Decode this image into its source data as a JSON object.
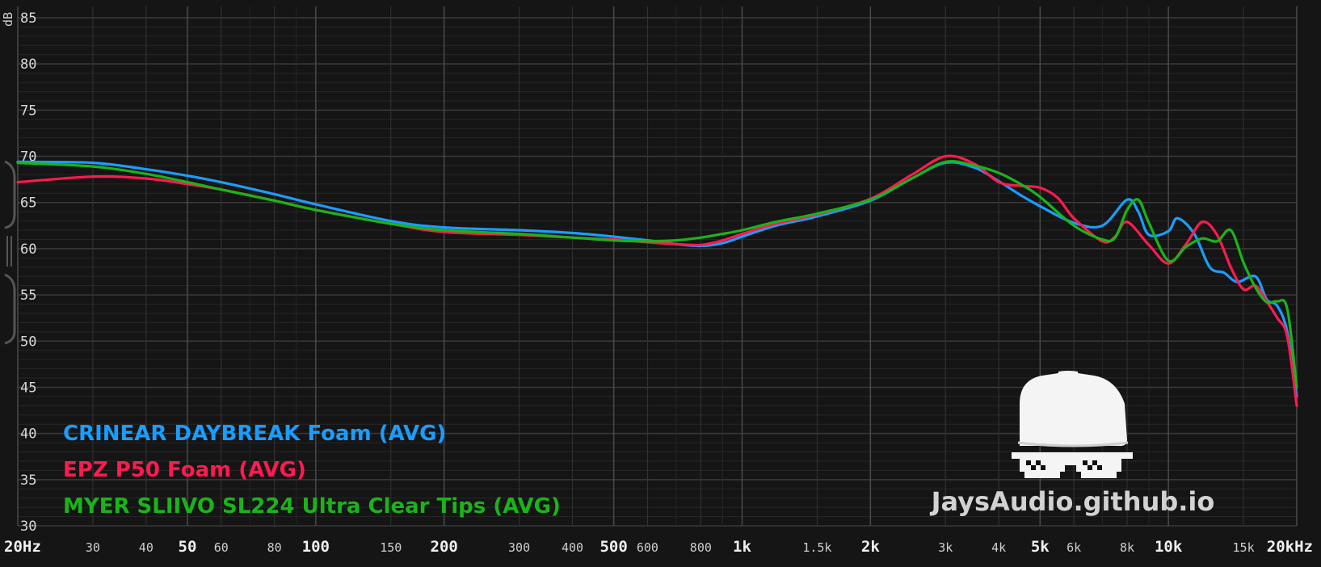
{
  "chart_data": {
    "type": "line",
    "ylabel": "dB",
    "ylim": [
      30,
      85
    ],
    "yticks": [
      "85",
      "80",
      "75",
      "70",
      "65",
      "60",
      "55",
      "50",
      "45",
      "40",
      "35",
      "30"
    ],
    "xscale": "log",
    "xlim": [
      20,
      20000
    ],
    "xticks": [
      {
        "value": 20,
        "label": "20Hz",
        "major": true
      },
      {
        "value": 30,
        "label": "30",
        "major": false
      },
      {
        "value": 40,
        "label": "40",
        "major": false
      },
      {
        "value": 50,
        "label": "50",
        "major": true
      },
      {
        "value": 60,
        "label": "60",
        "major": false
      },
      {
        "value": 80,
        "label": "80",
        "major": false
      },
      {
        "value": 100,
        "label": "100",
        "major": true
      },
      {
        "value": 150,
        "label": "150",
        "major": false
      },
      {
        "value": 200,
        "label": "200",
        "major": true
      },
      {
        "value": 300,
        "label": "300",
        "major": false
      },
      {
        "value": 400,
        "label": "400",
        "major": false
      },
      {
        "value": 500,
        "label": "500",
        "major": true
      },
      {
        "value": 600,
        "label": "600",
        "major": false
      },
      {
        "value": 800,
        "label": "800",
        "major": false
      },
      {
        "value": 1000,
        "label": "1k",
        "major": true
      },
      {
        "value": 1500,
        "label": "1.5k",
        "major": false
      },
      {
        "value": 2000,
        "label": "2k",
        "major": true
      },
      {
        "value": 3000,
        "label": "3k",
        "major": false
      },
      {
        "value": 4000,
        "label": "4k",
        "major": false
      },
      {
        "value": 5000,
        "label": "5k",
        "major": true
      },
      {
        "value": 6000,
        "label": "6k",
        "major": false
      },
      {
        "value": 8000,
        "label": "8k",
        "major": false
      },
      {
        "value": 10000,
        "label": "10k",
        "major": true
      },
      {
        "value": 15000,
        "label": "15k",
        "major": false
      },
      {
        "value": 20000,
        "label": "20kHz",
        "major": true
      }
    ],
    "grid": true,
    "legend_position": "bottom-left",
    "series": [
      {
        "name": "CRINEAR DAYBREAK Foam (AVG)",
        "color": "#1a9dff",
        "points": [
          [
            20,
            69.4
          ],
          [
            30,
            69.3
          ],
          [
            40,
            68.6
          ],
          [
            50,
            67.9
          ],
          [
            60,
            67.2
          ],
          [
            80,
            65.9
          ],
          [
            100,
            64.8
          ],
          [
            150,
            63.0
          ],
          [
            200,
            62.3
          ],
          [
            300,
            62.0
          ],
          [
            400,
            61.7
          ],
          [
            500,
            61.3
          ],
          [
            600,
            60.9
          ],
          [
            700,
            60.5
          ],
          [
            800,
            60.3
          ],
          [
            900,
            60.6
          ],
          [
            1000,
            61.3
          ],
          [
            1200,
            62.5
          ],
          [
            1500,
            63.5
          ],
          [
            2000,
            65.2
          ],
          [
            2500,
            67.6
          ],
          [
            3000,
            69.3
          ],
          [
            3500,
            68.8
          ],
          [
            4000,
            67.3
          ],
          [
            4500,
            65.8
          ],
          [
            5000,
            64.6
          ],
          [
            6000,
            62.8
          ],
          [
            7000,
            62.5
          ],
          [
            8000,
            65.3
          ],
          [
            8500,
            64.0
          ],
          [
            9000,
            61.5
          ],
          [
            10000,
            61.9
          ],
          [
            10500,
            63.3
          ],
          [
            11500,
            61.6
          ],
          [
            12500,
            58.0
          ],
          [
            13500,
            57.4
          ],
          [
            14500,
            56.4
          ],
          [
            16000,
            57.0
          ],
          [
            17000,
            54.5
          ],
          [
            18000,
            53.8
          ],
          [
            19000,
            51.0
          ],
          [
            20000,
            44.0
          ]
        ]
      },
      {
        "name": "EPZ P50 Foam (AVG)",
        "color": "#ff1a4f",
        "points": [
          [
            20,
            67.2
          ],
          [
            30,
            67.8
          ],
          [
            40,
            67.6
          ],
          [
            50,
            67.0
          ],
          [
            60,
            66.4
          ],
          [
            80,
            65.2
          ],
          [
            100,
            64.2
          ],
          [
            150,
            62.7
          ],
          [
            200,
            61.8
          ],
          [
            300,
            61.5
          ],
          [
            400,
            61.2
          ],
          [
            500,
            61.0
          ],
          [
            600,
            60.7
          ],
          [
            700,
            60.5
          ],
          [
            800,
            60.4
          ],
          [
            900,
            60.9
          ],
          [
            1000,
            61.6
          ],
          [
            1200,
            62.7
          ],
          [
            1500,
            63.7
          ],
          [
            2000,
            65.4
          ],
          [
            2500,
            68.0
          ],
          [
            3000,
            70.0
          ],
          [
            3500,
            69.2
          ],
          [
            4000,
            67.2
          ],
          [
            4500,
            66.8
          ],
          [
            5000,
            66.6
          ],
          [
            5500,
            65.5
          ],
          [
            6000,
            63.3
          ],
          [
            7000,
            60.8
          ],
          [
            7500,
            61.3
          ],
          [
            8000,
            62.9
          ],
          [
            9000,
            60.4
          ],
          [
            10000,
            58.4
          ],
          [
            11000,
            60.5
          ],
          [
            12000,
            62.9
          ],
          [
            13000,
            61.5
          ],
          [
            14000,
            58.0
          ],
          [
            15000,
            55.6
          ],
          [
            16000,
            56.0
          ],
          [
            17000,
            54.3
          ],
          [
            18000,
            52.5
          ],
          [
            19000,
            50.5
          ],
          [
            20000,
            43.0
          ]
        ]
      },
      {
        "name": "MYER SLIIVO SL224 Ultra Clear Tips (AVG)",
        "color": "#1ab41a",
        "points": [
          [
            20,
            69.3
          ],
          [
            30,
            68.9
          ],
          [
            40,
            68.1
          ],
          [
            50,
            67.2
          ],
          [
            60,
            66.4
          ],
          [
            80,
            65.2
          ],
          [
            100,
            64.2
          ],
          [
            150,
            62.7
          ],
          [
            200,
            62.0
          ],
          [
            300,
            61.6
          ],
          [
            400,
            61.2
          ],
          [
            500,
            60.9
          ],
          [
            600,
            60.8
          ],
          [
            700,
            60.9
          ],
          [
            800,
            61.2
          ],
          [
            900,
            61.6
          ],
          [
            1000,
            62.0
          ],
          [
            1200,
            62.9
          ],
          [
            1500,
            63.8
          ],
          [
            2000,
            65.3
          ],
          [
            2500,
            67.6
          ],
          [
            3000,
            69.4
          ],
          [
            3500,
            69.0
          ],
          [
            4000,
            68.2
          ],
          [
            4500,
            67.0
          ],
          [
            5000,
            65.6
          ],
          [
            6000,
            62.5
          ],
          [
            7000,
            61.0
          ],
          [
            7500,
            61.2
          ],
          [
            8000,
            64.2
          ],
          [
            8500,
            65.3
          ],
          [
            9000,
            62.8
          ],
          [
            10000,
            58.7
          ],
          [
            11000,
            60.2
          ],
          [
            12000,
            61.1
          ],
          [
            13000,
            60.8
          ],
          [
            14000,
            62.0
          ],
          [
            15000,
            58.5
          ],
          [
            16000,
            55.8
          ],
          [
            17000,
            54.2
          ],
          [
            18000,
            54.3
          ],
          [
            19000,
            53.5
          ],
          [
            20000,
            45.0
          ]
        ]
      }
    ]
  },
  "legend": [
    {
      "label": "CRINEAR DAYBREAK Foam (AVG)",
      "color": "#1a9dff"
    },
    {
      "label": "EPZ P50 Foam (AVG)",
      "color": "#ff1a4f"
    },
    {
      "label": "MYER SLIIVO SL224 Ultra Clear Tips (AVG)",
      "color": "#1ab41a"
    }
  ],
  "watermark": {
    "text": "JaysAudio.github.io"
  },
  "colors": {
    "background": "#151515",
    "grid_major": "#3a3a3a",
    "grid_minor": "#262626",
    "text": "#d8d8d8"
  }
}
